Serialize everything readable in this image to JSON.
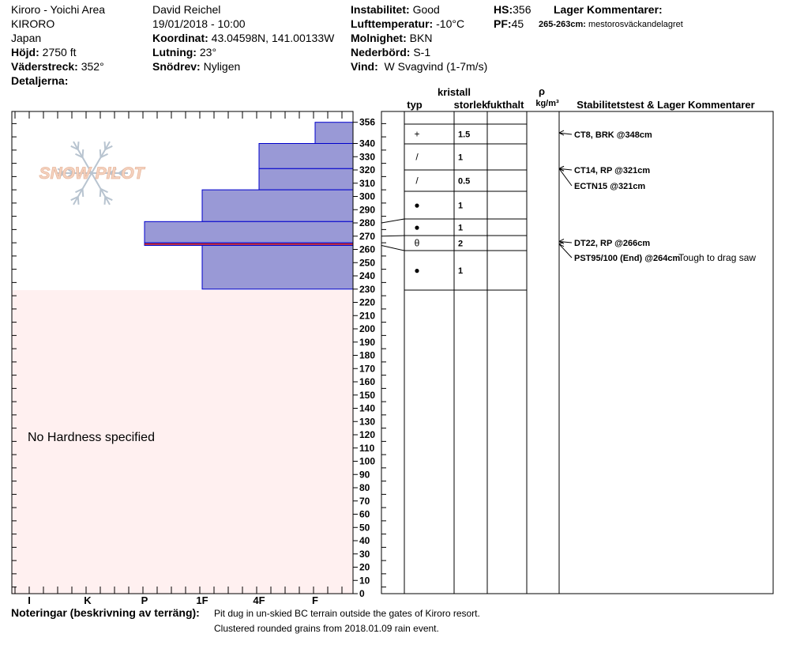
{
  "header": {
    "location_area": "Kiroro - Yoichi Area",
    "location_name": "KIRORO",
    "country": "Japan",
    "elevation_label": "Höjd:",
    "elevation_value": "2750 ft",
    "aspect_label": "Väderstreck:",
    "aspect_value": "352°",
    "details_label": "Detaljerna:",
    "observer": "David Reichel",
    "datetime": "19/01/2018 - 10:00",
    "coordinates_label": "Koordinat:",
    "coordinates_value": "43.04598N, 141.00133W",
    "slope_label": "Lutning:",
    "slope_value": "23°",
    "snowdrift_label": "Snödrev:",
    "snowdrift_value": "Nyligen",
    "instability_label": "Instabilitet:",
    "instability_value": "Good",
    "air_temp_label": "Lufttemperatur:",
    "air_temp_value": "-10°C",
    "sky_label": "Molnighet:",
    "sky_value": "BKN",
    "precip_label": "Nederbörd:",
    "precip_value": "S-1",
    "wind_label": "Vind:",
    "wind_value": "W Svagvind (1-7m/s)",
    "hs_label": "HS:",
    "hs_value": "356",
    "pf_label": "PF:",
    "pf_value": "45",
    "layer_comments_title": "Lager Kommentarer:",
    "layer_comment_range": "265-263cm:",
    "layer_comment_text": "mestorosväckandelagret"
  },
  "watermark": "SNOW PILOT",
  "no_hardness_text": "No Hardness specified",
  "columns": {
    "grain_type": "typ",
    "crystal": "kristall",
    "grain_size": "storlek",
    "moisture": "fukthalt",
    "density_symbol": "ρ",
    "density_unit": "kg/m³",
    "stability": "Stabilitetstest & Lager Kommentarer"
  },
  "notes": {
    "label": "Noteringar (beskrivning av terräng):",
    "line1": "Pit dug in un-skied BC terrain outside the gates of Kiroro resort.",
    "line2": "Clustered rounded grains from 2018.01.09 rain event."
  },
  "colors": {
    "layer_fill": "#9999d6",
    "layer_stroke": "#0000cc",
    "no_hardness_bg": "#fff0f0",
    "weak_layer": "#cc0000"
  },
  "chart_data": {
    "type": "snow_profile",
    "depth_unit": "cm",
    "total_height": 356,
    "hardness_scale": [
      "I",
      "K",
      "P",
      "1F",
      "4F",
      "F"
    ],
    "depth_ticks": [
      356,
      340,
      330,
      320,
      310,
      300,
      290,
      280,
      270,
      260,
      250,
      240,
      230,
      220,
      210,
      200,
      190,
      180,
      170,
      160,
      150,
      140,
      130,
      120,
      110,
      100,
      90,
      80,
      70,
      60,
      50,
      40,
      30,
      20,
      10,
      0
    ],
    "hardness_layers": [
      {
        "top": 356,
        "bottom": 340,
        "hardness": "F"
      },
      {
        "top": 340,
        "bottom": 321,
        "hardness": "4F"
      },
      {
        "top": 321,
        "bottom": 305,
        "hardness": "4F"
      },
      {
        "top": 305,
        "bottom": 281,
        "hardness": "1F"
      },
      {
        "top": 281,
        "bottom": 265,
        "hardness": "P"
      },
      {
        "top": 265,
        "bottom": 263,
        "hardness": "P",
        "weak_layer": true
      },
      {
        "top": 263,
        "bottom": 230,
        "hardness": "1F"
      }
    ],
    "layer_boundaries": [
      356,
      340,
      321,
      305,
      283,
      270,
      259,
      230
    ],
    "grain_rows": [
      {
        "top": 356,
        "bottom": 340,
        "type": "+",
        "size": "1.5"
      },
      {
        "top": 340,
        "bottom": 321,
        "type": "/",
        "size": "1"
      },
      {
        "top": 321,
        "bottom": 305,
        "type": "/",
        "size": "0.5"
      },
      {
        "top": 305,
        "bottom": 283,
        "type": "●",
        "size": "1"
      },
      {
        "top": 283,
        "bottom": 270,
        "type": "●",
        "size": "1"
      },
      {
        "top": 270,
        "bottom": 259,
        "type": "θ",
        "size": "2"
      },
      {
        "top": 259,
        "bottom": 230,
        "type": "●",
        "size": "1"
      }
    ],
    "stability_tests": [
      {
        "depth": 348,
        "text": "CT8, BRK @348cm"
      },
      {
        "depth": 321,
        "text": "CT14, RP @321cm"
      },
      {
        "depth": 321,
        "text": "ECTN15 @321cm"
      },
      {
        "depth": 266,
        "text": "DT22, RP @266cm"
      },
      {
        "depth": 264,
        "text": "PST95/100 (End) @264cm",
        "comment": "Tough to drag saw"
      }
    ]
  }
}
